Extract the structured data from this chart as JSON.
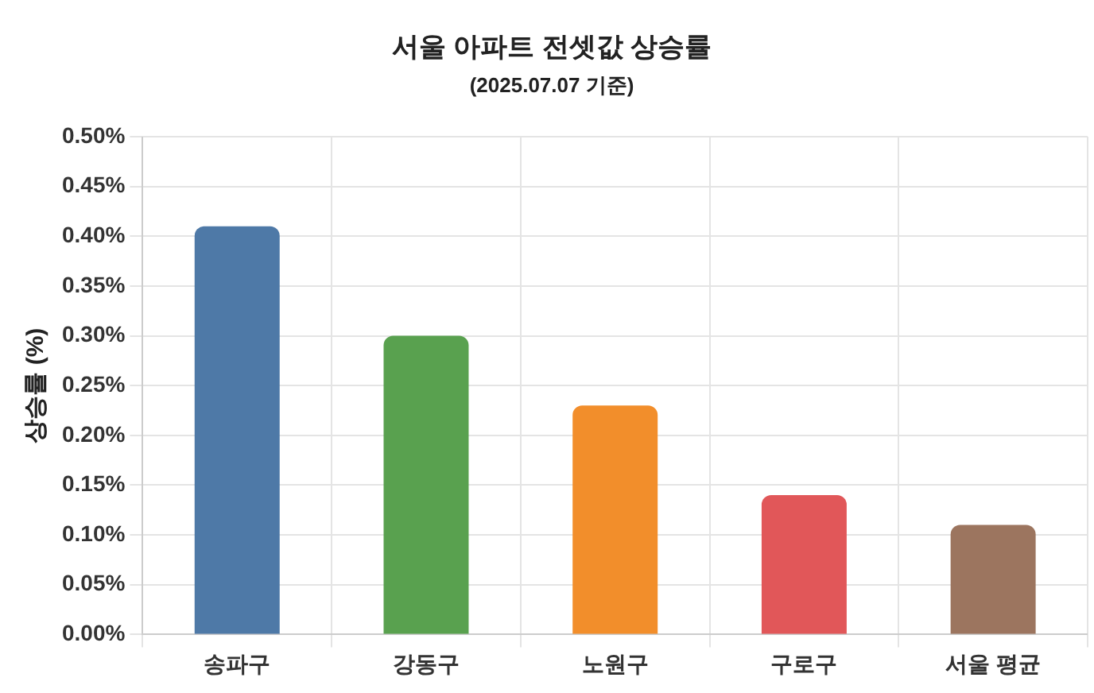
{
  "chart_data": {
    "type": "bar",
    "title": "서울 아파트 전셋값 상승률",
    "subtitle": "(2025.07.07 기준)",
    "ylabel": "상승률 (%)",
    "categories": [
      "송파구",
      "강동구",
      "노원구",
      "구로구",
      "서울 평균"
    ],
    "values": [
      0.41,
      0.3,
      0.23,
      0.14,
      0.11
    ],
    "colors": [
      "#4e79a7",
      "#59a14f",
      "#f28e2b",
      "#e15759",
      "#9c755f"
    ],
    "ylim": [
      0,
      0.5
    ],
    "yticks": [
      {
        "value": 0,
        "label": "0.00%"
      },
      {
        "value": 0.05,
        "label": "0.05%"
      },
      {
        "value": 0.1,
        "label": "0.10%"
      },
      {
        "value": 0.15,
        "label": "0.15%"
      },
      {
        "value": 0.2,
        "label": "0.20%"
      },
      {
        "value": 0.25,
        "label": "0.25%"
      },
      {
        "value": 0.3,
        "label": "0.30%"
      },
      {
        "value": 0.35,
        "label": "0.35%"
      },
      {
        "value": 0.4,
        "label": "0.40%"
      },
      {
        "value": 0.45,
        "label": "0.45%"
      },
      {
        "value": 0.5,
        "label": "0.50%"
      }
    ],
    "grid": true,
    "legend": false
  }
}
